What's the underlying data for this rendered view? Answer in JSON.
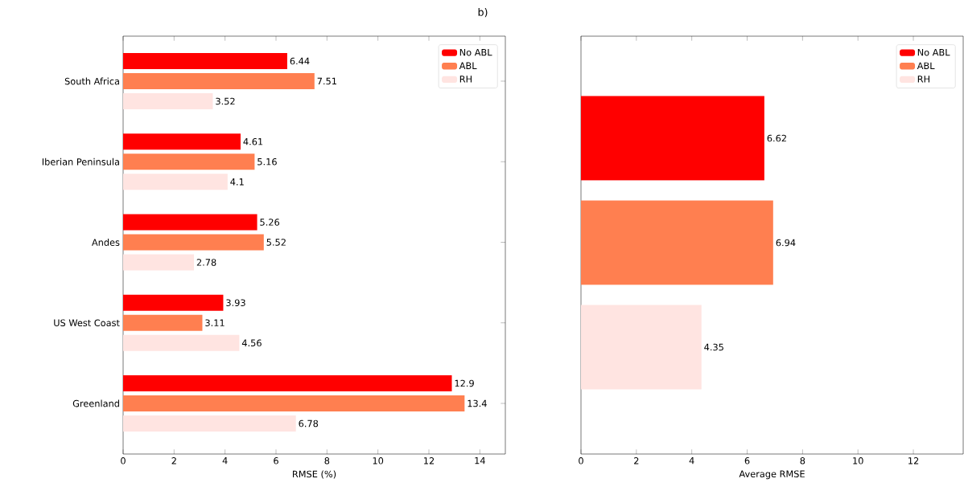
{
  "chart_data": [
    {
      "type": "bar",
      "orientation": "horizontal",
      "title": "b)",
      "xlabel": "RMSE (%)",
      "categories": [
        "South Africa",
        "Iberian Peninsula",
        "Andes",
        "US West Coast",
        "Greenland"
      ],
      "series": [
        {
          "name": "No ABL",
          "color": "#ff0000",
          "values": [
            6.44,
            4.61,
            5.26,
            3.93,
            12.9
          ]
        },
        {
          "name": "ABL",
          "color": "#ff7f50",
          "values": [
            7.51,
            5.16,
            5.52,
            3.11,
            13.4
          ]
        },
        {
          "name": "RH",
          "color": "#ffe4e1",
          "values": [
            3.52,
            4.1,
            2.78,
            4.56,
            6.78
          ]
        }
      ],
      "xlim": [
        0,
        15
      ],
      "xticks": [
        0,
        2,
        4,
        6,
        8,
        10,
        12,
        14
      ],
      "data_labels": true,
      "legend": "top right"
    },
    {
      "type": "bar",
      "orientation": "horizontal",
      "xlabel": "Average RMSE",
      "categories": [
        null
      ],
      "series": [
        {
          "name": "No ABL",
          "color": "#ff0000",
          "values": [
            6.62
          ]
        },
        {
          "name": "ABL",
          "color": "#ff7f50",
          "values": [
            6.94
          ]
        },
        {
          "name": "RH",
          "color": "#ffe4e1",
          "values": [
            4.35
          ]
        }
      ],
      "xlim": [
        0,
        13.8
      ],
      "xticks": [
        0,
        2,
        4,
        6,
        8,
        10,
        12
      ],
      "data_labels": true,
      "legend": "top right",
      "tick_labels": "x"
    }
  ]
}
